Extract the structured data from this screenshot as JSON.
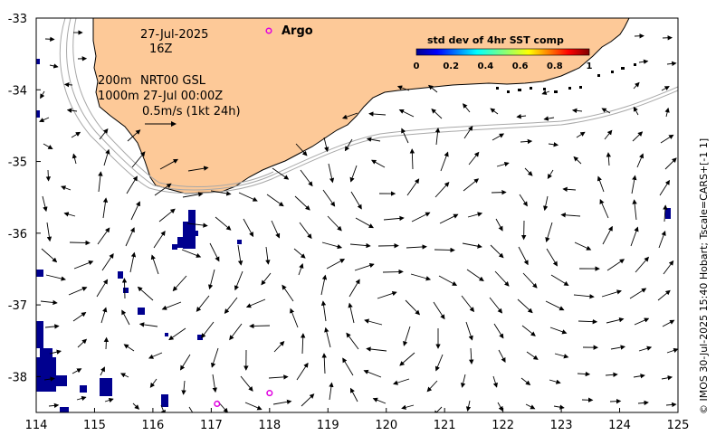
{
  "map": {
    "x_ticks": [
      "114",
      "115",
      "116",
      "117",
      "118",
      "119",
      "120",
      "121",
      "122",
      "123",
      "124",
      "125"
    ],
    "y_ticks": [
      "-33",
      "-34",
      "-35",
      "-36",
      "-37",
      "-38"
    ],
    "lon_range": [
      114,
      125
    ],
    "lat_range": [
      -38.5,
      -33
    ],
    "colors": {
      "land": "#fdc998",
      "ocean": "#ffffff",
      "sst_low": "#00008f",
      "argo": "#e000e0",
      "contour": "#a8a8a8"
    }
  },
  "annotations": {
    "date": "27-Jul-2025",
    "hour": "16Z",
    "depth_200": "200m",
    "product": "NRT00 GSL",
    "depth_1000": "1000m",
    "valid_time": "27-Jul 00:00Z",
    "arrow_scale": "0.5m/s (1kt 24h)",
    "argo_legend": "Argo"
  },
  "colorbar": {
    "title": "std dev of 4hr SST comp",
    "ticks": [
      "0",
      "0.2",
      "0.4",
      "0.6",
      "0.8",
      "1"
    ]
  },
  "credit": "© IMOS 30-Jul-2025 15:40 Hobart; Tscale=CARS+[-1 1]",
  "argo_floats": [
    {
      "lon": 117.1,
      "lat": -38.38
    },
    {
      "lon": 118.0,
      "lat": -38.23
    }
  ]
}
